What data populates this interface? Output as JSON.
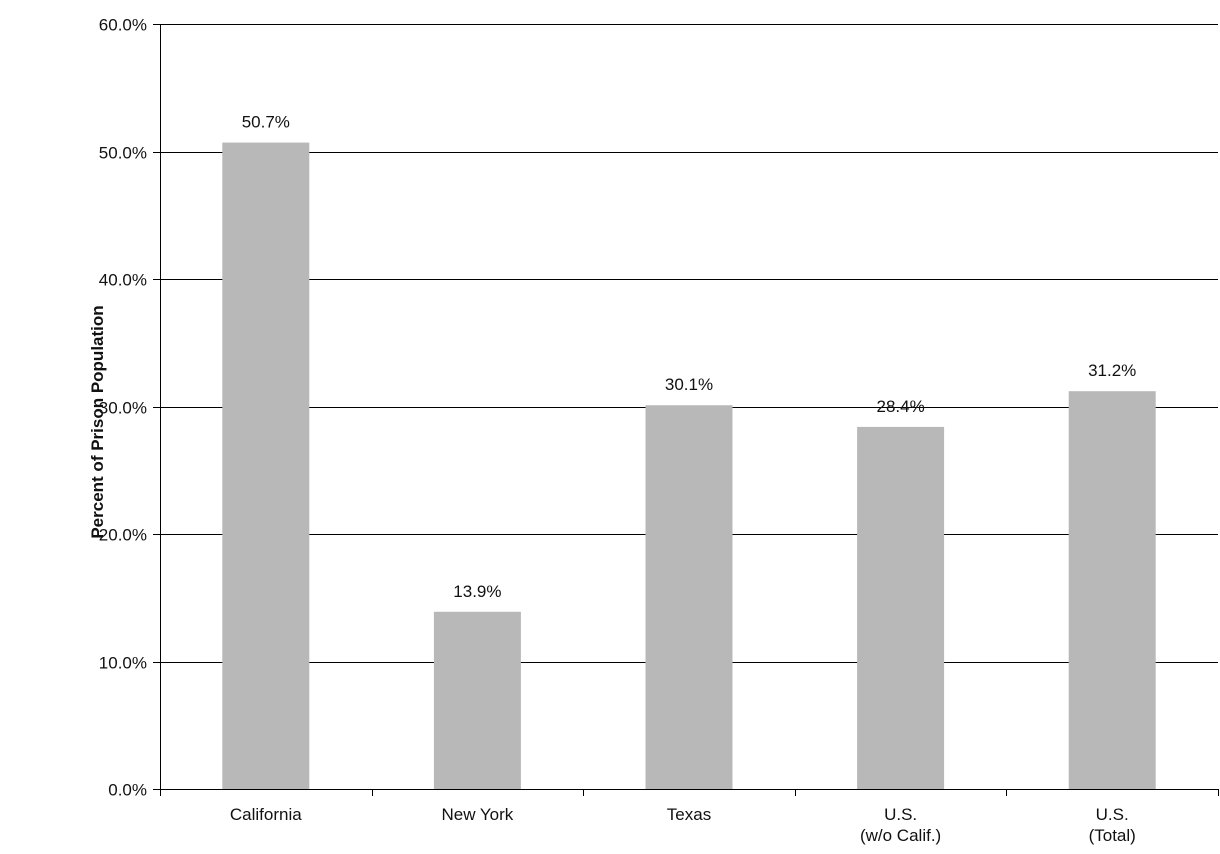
{
  "chart_data": {
    "type": "bar",
    "categories": [
      [
        "California"
      ],
      [
        "New York"
      ],
      [
        "Texas"
      ],
      [
        "U.S.",
        "(w/o Calif.)"
      ],
      [
        "U.S.",
        "(Total)"
      ]
    ],
    "values": [
      50.7,
      13.9,
      30.1,
      28.4,
      31.2
    ],
    "data_labels": [
      "50.7%",
      "13.9%",
      "30.1%",
      "28.4%",
      "31.2%"
    ],
    "title": "",
    "xlabel": "",
    "ylabel": "Percent of Prison Population",
    "ylim": [
      0,
      60
    ],
    "yticks": [
      0,
      10,
      20,
      30,
      40,
      50,
      60
    ],
    "ytick_labels": [
      "0.0%",
      "10.0%",
      "20.0%",
      "30.0%",
      "40.0%",
      "50.0%",
      "60.0%"
    ],
    "grid": "horizontal",
    "legend": "none",
    "colors": {
      "bar": "#b8b8b8",
      "grid": "#000000",
      "axis": "#000000"
    }
  }
}
